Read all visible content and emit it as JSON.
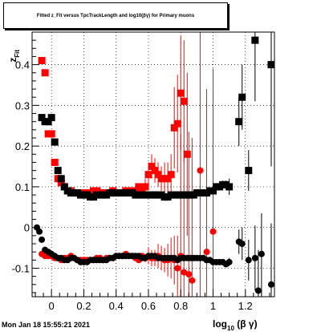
{
  "title": "Fitted z_Fit versus TpcTrackLength and log10(βγ) for Primary muons",
  "timestamp": "Mon Jan 18 15:55:21 2021",
  "chart_data": {
    "type": "scatter",
    "title": "Fitted z_Fit versus TpcTrackLength and log10(βγ) for Primary muons",
    "xlabel": "log10 (β γ)",
    "ylabel": "z_Fit",
    "xlim": [
      -0.12,
      1.38
    ],
    "ylim": [
      -0.17,
      0.48
    ],
    "grid": true,
    "x_ticks": [
      "0",
      "0.2",
      "0.4",
      "0.6",
      "0.8",
      "1",
      "1.2"
    ],
    "y_ticks": [
      "-0.1",
      "0",
      "0.1",
      "0.2",
      "0.3",
      "0.4"
    ],
    "x_tick_values": [
      0,
      0.2,
      0.4,
      0.6,
      0.8,
      1.0,
      1.2
    ],
    "y_tick_values": [
      -0.1,
      0,
      0.1,
      0.2,
      0.3,
      0.4
    ],
    "series": [
      {
        "color": "#ff0000",
        "marker": "square",
        "points": [
          [
            -0.06,
            0.41,
            0
          ],
          [
            -0.04,
            0.38,
            0
          ],
          [
            -0.02,
            0.23,
            0
          ],
          [
            0.0,
            0.23,
            0
          ],
          [
            0.02,
            0.16,
            0
          ],
          [
            0.04,
            0.12,
            0
          ],
          [
            0.06,
            0.11,
            0
          ],
          [
            0.08,
            0.1,
            0
          ],
          [
            0.1,
            0.09,
            0
          ],
          [
            0.12,
            0.09,
            0
          ],
          [
            0.14,
            0.085,
            0
          ],
          [
            0.16,
            0.085,
            0
          ],
          [
            0.18,
            0.085,
            0
          ],
          [
            0.2,
            0.08,
            0
          ],
          [
            0.22,
            0.085,
            0
          ],
          [
            0.24,
            0.085,
            0
          ],
          [
            0.26,
            0.09,
            0
          ],
          [
            0.28,
            0.09,
            0
          ],
          [
            0.3,
            0.085,
            0
          ],
          [
            0.32,
            0.085,
            0
          ],
          [
            0.34,
            0.085,
            0
          ],
          [
            0.36,
            0.085,
            0
          ],
          [
            0.38,
            0.09,
            0
          ],
          [
            0.4,
            0.085,
            0
          ],
          [
            0.42,
            0.085,
            0
          ],
          [
            0.44,
            0.085,
            0
          ],
          [
            0.46,
            0.09,
            0
          ],
          [
            0.48,
            0.09,
            0
          ],
          [
            0.5,
            0.09,
            0
          ],
          [
            0.52,
            0.09,
            0
          ],
          [
            0.54,
            0.1,
            0
          ],
          [
            0.56,
            0.09,
            0
          ],
          [
            0.58,
            0.1,
            0.02
          ],
          [
            0.6,
            0.13,
            0.03
          ],
          [
            0.62,
            0.15,
            0.03
          ],
          [
            0.64,
            0.14,
            0.03
          ],
          [
            0.66,
            0.13,
            0.03
          ],
          [
            0.68,
            0.12,
            0.03
          ],
          [
            0.7,
            0.12,
            0.04
          ],
          [
            0.72,
            0.12,
            0.04
          ],
          [
            0.74,
            0.13,
            0.05
          ],
          [
            0.76,
            0.245,
            0.1
          ],
          [
            0.78,
            0.255,
            0.12
          ],
          [
            0.8,
            0.33,
            0.14
          ],
          [
            0.82,
            0.31,
            0.15
          ],
          [
            0.84,
            0.18,
            0.2
          ]
        ]
      },
      {
        "color": "#ff0000",
        "marker": "circle",
        "points": [
          [
            -0.06,
            -0.065,
            0
          ],
          [
            -0.04,
            -0.07,
            0
          ],
          [
            -0.02,
            -0.07,
            0
          ],
          [
            0.0,
            -0.07,
            0
          ],
          [
            0.02,
            -0.075,
            0
          ],
          [
            0.04,
            -0.075,
            0
          ],
          [
            0.06,
            -0.08,
            0
          ],
          [
            0.08,
            -0.075,
            0
          ],
          [
            0.1,
            -0.075,
            0
          ],
          [
            0.12,
            -0.07,
            0
          ],
          [
            0.14,
            -0.075,
            0
          ],
          [
            0.16,
            -0.08,
            0
          ],
          [
            0.18,
            -0.08,
            0
          ],
          [
            0.2,
            -0.08,
            0
          ],
          [
            0.22,
            -0.08,
            0
          ],
          [
            0.24,
            -0.08,
            0
          ],
          [
            0.26,
            -0.08,
            0
          ],
          [
            0.28,
            -0.075,
            0
          ],
          [
            0.3,
            -0.075,
            0
          ],
          [
            0.32,
            -0.08,
            0
          ],
          [
            0.34,
            -0.075,
            0
          ],
          [
            0.36,
            -0.075,
            0
          ],
          [
            0.38,
            -0.075,
            0
          ],
          [
            0.4,
            -0.07,
            0
          ],
          [
            0.42,
            -0.07,
            0
          ],
          [
            0.44,
            -0.07,
            0
          ],
          [
            0.46,
            -0.065,
            0
          ],
          [
            0.48,
            -0.07,
            0
          ],
          [
            0.5,
            -0.07,
            0
          ],
          [
            0.52,
            -0.075,
            0
          ],
          [
            0.54,
            -0.08,
            0
          ],
          [
            0.56,
            -0.07,
            0
          ],
          [
            0.58,
            -0.075,
            0.01
          ],
          [
            0.6,
            -0.07,
            0.02
          ],
          [
            0.62,
            -0.075,
            0.02
          ],
          [
            0.64,
            -0.075,
            0.02
          ],
          [
            0.66,
            -0.07,
            0.03
          ],
          [
            0.68,
            -0.075,
            0.03
          ],
          [
            0.7,
            -0.08,
            0.03
          ],
          [
            0.72,
            -0.08,
            0.04
          ],
          [
            0.74,
            -0.075,
            0.05
          ],
          [
            0.76,
            -0.08,
            0.06
          ],
          [
            0.78,
            -0.1,
            0.08
          ],
          [
            0.8,
            -0.07,
            0.3
          ],
          [
            0.82,
            -0.11,
            0.3
          ],
          [
            0.85,
            -0.115,
            0.35
          ],
          [
            0.87,
            -0.13,
            0.35
          ],
          [
            0.92,
            0.14,
            0.4
          ],
          [
            0.96,
            -0.06,
            0.4
          ],
          [
            1.0,
            -0.01,
            0.4
          ]
        ]
      },
      {
        "color": "#000000",
        "marker": "square",
        "points": [
          [
            -0.06,
            0.27,
            0
          ],
          [
            -0.04,
            0.26,
            0
          ],
          [
            -0.02,
            0.26,
            0
          ],
          [
            0.0,
            0.27,
            0
          ],
          [
            0.02,
            0.21,
            0
          ],
          [
            0.04,
            0.14,
            0
          ],
          [
            0.06,
            0.12,
            0
          ],
          [
            0.08,
            0.1,
            0
          ],
          [
            0.1,
            0.09,
            0
          ],
          [
            0.12,
            0.085,
            0
          ],
          [
            0.14,
            0.085,
            0
          ],
          [
            0.16,
            0.085,
            0
          ],
          [
            0.18,
            0.08,
            0
          ],
          [
            0.2,
            0.08,
            0
          ],
          [
            0.22,
            0.08,
            0
          ],
          [
            0.24,
            0.075,
            0
          ],
          [
            0.26,
            0.075,
            0
          ],
          [
            0.28,
            0.08,
            0
          ],
          [
            0.3,
            0.08,
            0
          ],
          [
            0.32,
            0.08,
            0
          ],
          [
            0.34,
            0.08,
            0
          ],
          [
            0.36,
            0.085,
            0
          ],
          [
            0.38,
            0.085,
            0
          ],
          [
            0.4,
            0.085,
            0
          ],
          [
            0.42,
            0.085,
            0
          ],
          [
            0.44,
            0.085,
            0
          ],
          [
            0.46,
            0.085,
            0
          ],
          [
            0.48,
            0.085,
            0
          ],
          [
            0.5,
            0.085,
            0
          ],
          [
            0.52,
            0.08,
            0
          ],
          [
            0.54,
            0.08,
            0
          ],
          [
            0.56,
            0.08,
            0
          ],
          [
            0.58,
            0.08,
            0
          ],
          [
            0.6,
            0.08,
            0
          ],
          [
            0.62,
            0.08,
            0
          ],
          [
            0.64,
            0.08,
            0
          ],
          [
            0.66,
            0.08,
            0
          ],
          [
            0.68,
            0.08,
            0
          ],
          [
            0.7,
            0.075,
            0
          ],
          [
            0.72,
            0.075,
            0
          ],
          [
            0.74,
            0.08,
            0
          ],
          [
            0.76,
            0.08,
            0
          ],
          [
            0.78,
            0.08,
            0
          ],
          [
            0.8,
            0.08,
            0
          ],
          [
            0.82,
            0.08,
            0
          ],
          [
            0.84,
            0.08,
            0
          ],
          [
            0.86,
            0.08,
            0
          ],
          [
            0.88,
            0.08,
            0
          ],
          [
            0.9,
            0.085,
            0
          ],
          [
            0.92,
            0.085,
            0
          ],
          [
            0.94,
            0.085,
            0
          ],
          [
            0.96,
            0.085,
            0
          ],
          [
            0.98,
            0.09,
            0
          ],
          [
            1.0,
            0.09,
            0
          ],
          [
            1.02,
            0.1,
            0
          ],
          [
            1.04,
            0.1,
            0
          ],
          [
            1.06,
            0.105,
            0.01
          ],
          [
            1.08,
            0.105,
            0.01
          ],
          [
            1.1,
            0.1,
            0.02
          ],
          [
            1.16,
            0.26,
            0.06
          ],
          [
            1.18,
            0.32,
            0.08
          ],
          [
            1.22,
            0.14,
            0.05
          ],
          [
            1.26,
            0.46,
            0.15
          ],
          [
            1.36,
            0.4,
            0.25
          ]
        ]
      },
      {
        "color": "#000000",
        "marker": "circle",
        "points": [
          [
            -0.09,
            0.0,
            0
          ],
          [
            -0.075,
            -0.01,
            0
          ],
          [
            -0.06,
            -0.03,
            0
          ],
          [
            -0.04,
            -0.055,
            0
          ],
          [
            -0.02,
            -0.06,
            0
          ],
          [
            0.0,
            -0.065,
            0
          ],
          [
            0.02,
            -0.07,
            0
          ],
          [
            0.04,
            -0.075,
            0
          ],
          [
            0.06,
            -0.075,
            0
          ],
          [
            0.08,
            -0.08,
            0
          ],
          [
            0.1,
            -0.08,
            0
          ],
          [
            0.12,
            -0.075,
            0
          ],
          [
            0.14,
            -0.075,
            0
          ],
          [
            0.16,
            -0.08,
            0
          ],
          [
            0.18,
            -0.085,
            0
          ],
          [
            0.2,
            -0.085,
            0
          ],
          [
            0.22,
            -0.085,
            0
          ],
          [
            0.24,
            -0.08,
            0
          ],
          [
            0.26,
            -0.08,
            0
          ],
          [
            0.28,
            -0.08,
            0
          ],
          [
            0.3,
            -0.08,
            0
          ],
          [
            0.32,
            -0.08,
            0
          ],
          [
            0.34,
            -0.08,
            0
          ],
          [
            0.36,
            -0.075,
            0
          ],
          [
            0.38,
            -0.075,
            0
          ],
          [
            0.4,
            -0.07,
            0
          ],
          [
            0.42,
            -0.07,
            0
          ],
          [
            0.44,
            -0.07,
            0
          ],
          [
            0.46,
            -0.07,
            0
          ],
          [
            0.48,
            -0.07,
            0
          ],
          [
            0.5,
            -0.07,
            0
          ],
          [
            0.52,
            -0.07,
            0
          ],
          [
            0.54,
            -0.07,
            0
          ],
          [
            0.56,
            -0.075,
            0
          ],
          [
            0.58,
            -0.075,
            0
          ],
          [
            0.6,
            -0.07,
            0
          ],
          [
            0.62,
            -0.07,
            0
          ],
          [
            0.64,
            -0.07,
            0
          ],
          [
            0.66,
            -0.075,
            0
          ],
          [
            0.68,
            -0.075,
            0
          ],
          [
            0.7,
            -0.075,
            0
          ],
          [
            0.72,
            -0.075,
            0
          ],
          [
            0.74,
            -0.075,
            0
          ],
          [
            0.76,
            -0.075,
            0
          ],
          [
            0.78,
            -0.08,
            0
          ],
          [
            0.8,
            -0.075,
            0
          ],
          [
            0.82,
            -0.075,
            0
          ],
          [
            0.84,
            -0.075,
            0
          ],
          [
            0.86,
            -0.075,
            0
          ],
          [
            0.88,
            -0.075,
            0
          ],
          [
            0.9,
            -0.075,
            0
          ],
          [
            0.92,
            -0.075,
            0
          ],
          [
            0.94,
            -0.075,
            0
          ],
          [
            0.96,
            -0.08,
            0
          ],
          [
            0.98,
            -0.08,
            0
          ],
          [
            1.0,
            -0.085,
            0
          ],
          [
            1.02,
            -0.085,
            0
          ],
          [
            1.04,
            -0.085,
            0
          ],
          [
            1.06,
            -0.085,
            0
          ],
          [
            1.08,
            -0.09,
            0
          ],
          [
            1.1,
            -0.085,
            0.01
          ],
          [
            1.16,
            -0.035,
            0.03
          ],
          [
            1.18,
            -0.04,
            0.04
          ],
          [
            1.22,
            -0.08,
            0.05
          ],
          [
            1.26,
            -0.075,
            0.08
          ],
          [
            1.28,
            -0.155,
            0.1
          ],
          [
            1.3,
            -0.065,
            0.1
          ],
          [
            1.36,
            -0.14,
            0.15
          ]
        ]
      }
    ]
  }
}
